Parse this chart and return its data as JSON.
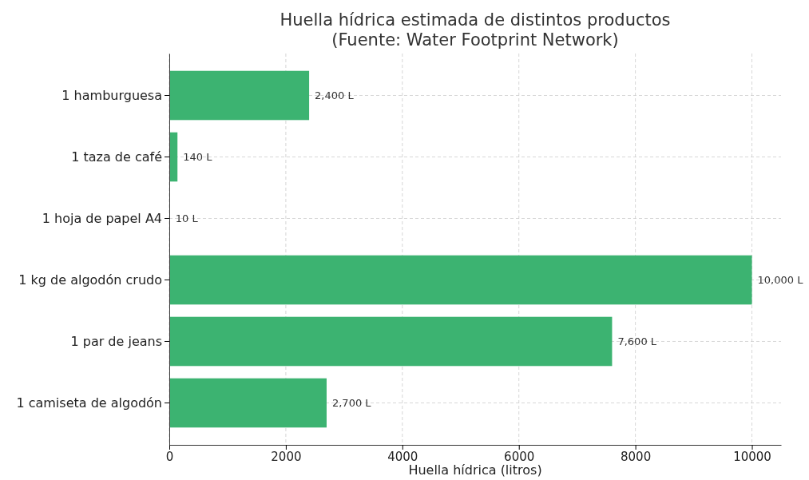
{
  "chart_data": {
    "type": "bar",
    "orientation": "horizontal",
    "title": "Huella hídrica estimada de distintos productos\n(Fuente: Water Footprint Network)",
    "xlabel": "Huella hídrica (litros)",
    "categories": [
      "1 hamburguesa",
      "1 taza de café",
      "1 hoja de papel A4",
      "1 kg de algodón crudo",
      "1 par de jeans",
      "1 camiseta de algodón"
    ],
    "values": [
      2400,
      140,
      10,
      10000,
      7600,
      2700
    ],
    "value_labels": [
      "2,400 L",
      "140 L",
      "10 L",
      "10,000 L",
      "7,600 L",
      "2,700 L"
    ],
    "color": "#3cb371",
    "xlim": [
      0,
      10500
    ],
    "xticks": [
      0,
      2000,
      4000,
      6000,
      8000,
      10000
    ],
    "grid": true
  }
}
